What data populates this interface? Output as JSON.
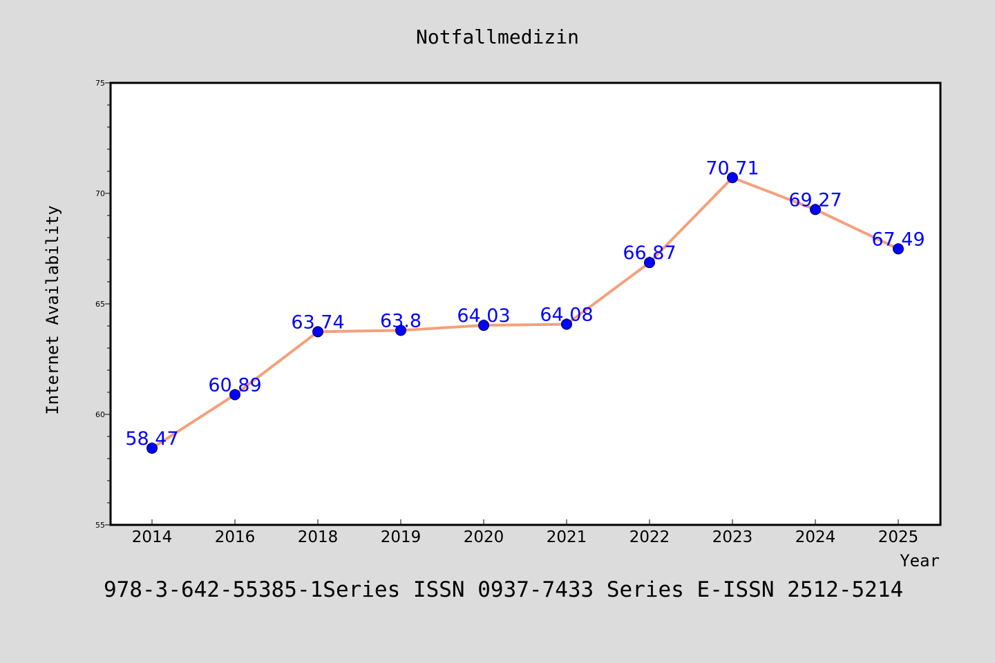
{
  "chart_data": {
    "type": "line",
    "title": "Notfallmedizin",
    "xlabel": "Year",
    "ylabel": "Internet Availability",
    "categories": [
      "2014",
      "2016",
      "2018",
      "2019",
      "2020",
      "2021",
      "2022",
      "2023",
      "2024",
      "2025"
    ],
    "series": [
      {
        "values": [
          58.47,
          60.89,
          63.74,
          63.8,
          64.03,
          64.08,
          66.87,
          70.71,
          69.27,
          67.49
        ],
        "value_labels": [
          "58.47",
          "60.89",
          "63.74",
          "63.8",
          "64.03",
          "64.08",
          "66.87",
          "70.71",
          "69.27",
          "67.49"
        ],
        "line_color": "#f4a07c",
        "marker_color": "#0000ff",
        "label_color": "#0000ff"
      }
    ],
    "ylim": [
      55,
      75
    ],
    "yticks": [
      55,
      60,
      65,
      70,
      75
    ],
    "ytick_labels": [
      "55",
      "60",
      "65",
      "70",
      "75"
    ],
    "y_minor_step": 1,
    "grid": false,
    "legend": "none"
  },
  "footer": {
    "text": "978-3-642-55385-1Series ISSN 0937-7433 Series E-ISSN 2512-5214"
  },
  "colors": {
    "background": "#dcdcdc",
    "plot_background": "#ffffff",
    "axis": "#000000"
  }
}
